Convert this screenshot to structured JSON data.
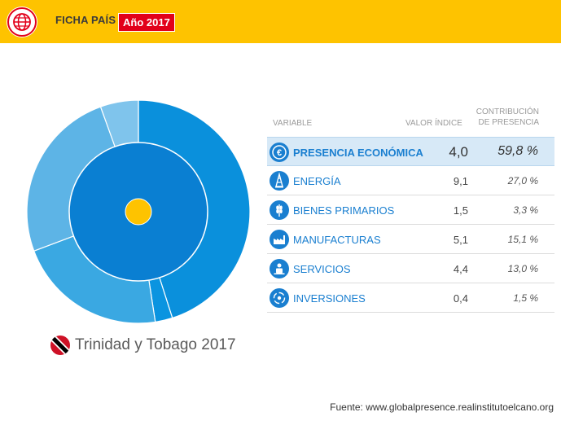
{
  "header": {
    "logo_icon": "globe-icon",
    "title": "FICHA PAÍS",
    "year_badge": "Año 2017",
    "colors": {
      "bar": "#fec300",
      "badge": "#e2001a"
    }
  },
  "country": {
    "flag_icon": "trinidad-tobago-flag-icon",
    "label": "Trinidad y Tobago 2017"
  },
  "table": {
    "headers": {
      "variable": "VARIABLE",
      "valor": "VALOR ÍNDICE",
      "contribucion_line1": "CONTRIBUCIÓN",
      "contribucion_line2": "DE PRESENCIA"
    },
    "rows": [
      {
        "icon": "euro-icon",
        "label": "PRESENCIA ECONÓMICA",
        "value": "4,0",
        "contribution": "59,8 %"
      },
      {
        "icon": "oil-derrick-icon",
        "label": "ENERGÍA",
        "value": "9,1",
        "contribution": "27,0 %"
      },
      {
        "icon": "wheat-icon",
        "label": "BIENES PRIMARIOS",
        "value": "1,5",
        "contribution": "3,3 %"
      },
      {
        "icon": "factory-icon",
        "label": "MANUFACTURAS",
        "value": "5,1",
        "contribution": "15,1 %"
      },
      {
        "icon": "services-icon",
        "label": "SERVICIOS",
        "value": "4,4",
        "contribution": "13,0 %"
      },
      {
        "icon": "investment-cycle-icon",
        "label": "INVERSIONES",
        "value": "0,4",
        "contribution": "1,5 %"
      }
    ]
  },
  "chart_data": {
    "type": "pie",
    "inner": {
      "label": "PRESENCIA ECONÓMICA",
      "value": 59.8
    },
    "slices": [
      {
        "label": "ENERGÍA",
        "value": 27.0,
        "color": "#0a90dc"
      },
      {
        "label": "INVERSIONES",
        "value": 1.5,
        "color": "#0a94e0"
      },
      {
        "label": "SERVICIOS",
        "value": 13.0,
        "color": "#3aa8e2"
      },
      {
        "label": "MANUFACTURAS",
        "value": 15.1,
        "color": "#5db4e6"
      },
      {
        "label": "BIENES PRIMARIOS",
        "value": 3.3,
        "color": "#7fc4ec"
      }
    ],
    "inner_color": "#0a7fd2",
    "center_color": "#fec300"
  },
  "source": "Fuente: www.globalpresence.realinstitutoelcano.org"
}
